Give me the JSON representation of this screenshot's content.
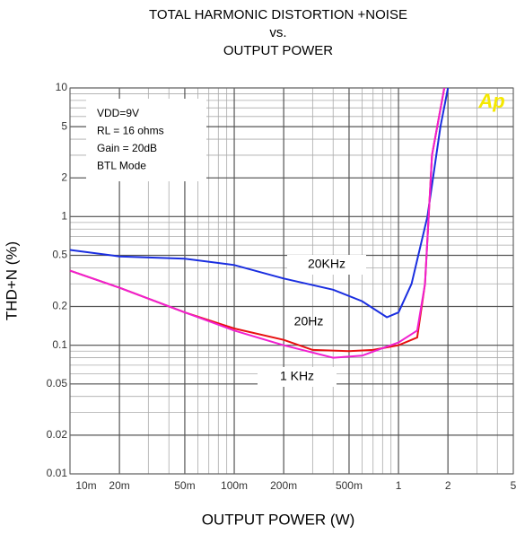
{
  "chart_data": {
    "type": "line",
    "title": [
      "TOTAL HARMONIC DISTORTION +NOISE",
      "vs.",
      "OUTPUT POWER"
    ],
    "x_label": "OUTPUT POWER (W)",
    "y_label": "THD+N (%)",
    "log_x": true,
    "log_y": true,
    "grid": true,
    "xlim": [
      0.01,
      5
    ],
    "ylim": [
      0.01,
      10
    ],
    "xticks": [
      {
        "value": 0.01,
        "label": "10m"
      },
      {
        "value": 0.02,
        "label": "20m"
      },
      {
        "value": 0.05,
        "label": "50m"
      },
      {
        "value": 0.1,
        "label": "100m"
      },
      {
        "value": 0.2,
        "label": "200m"
      },
      {
        "value": 0.5,
        "label": "500m"
      },
      1,
      2,
      5
    ],
    "yticks": [
      0.01,
      0.02,
      0.05,
      0.1,
      0.2,
      0.5,
      1,
      2,
      5,
      10
    ],
    "annotations": [
      "VDD=9V",
      "RL = 16 ohms",
      "Gain = 20dB",
      "BTL Mode"
    ],
    "logo": "Ap",
    "series": [
      {
        "name": "20KHz",
        "color": "#1a2ee0",
        "x": [
          0.01,
          0.02,
          0.05,
          0.1,
          0.2,
          0.4,
          0.6,
          0.85,
          1.0,
          1.2,
          1.5,
          1.8,
          2.0
        ],
        "values": [
          0.55,
          0.49,
          0.47,
          0.42,
          0.33,
          0.27,
          0.22,
          0.165,
          0.18,
          0.3,
          1.0,
          5,
          10
        ]
      },
      {
        "name": "20Hz",
        "color": "#e81010",
        "x": [
          0.01,
          0.02,
          0.05,
          0.1,
          0.2,
          0.3,
          0.5,
          0.7,
          1.0,
          1.3,
          1.45,
          1.6,
          1.9
        ],
        "values": [
          0.38,
          0.28,
          0.18,
          0.135,
          0.11,
          0.092,
          0.09,
          0.092,
          0.1,
          0.115,
          0.3,
          3,
          10
        ]
      },
      {
        "name": "1 KHz",
        "color": "#f020d0",
        "x": [
          0.01,
          0.02,
          0.05,
          0.1,
          0.2,
          0.4,
          0.6,
          0.8,
          1.0,
          1.3,
          1.45,
          1.6,
          1.9
        ],
        "values": [
          0.38,
          0.28,
          0.18,
          0.13,
          0.1,
          0.08,
          0.083,
          0.095,
          0.105,
          0.13,
          0.3,
          3,
          10
        ]
      }
    ]
  }
}
